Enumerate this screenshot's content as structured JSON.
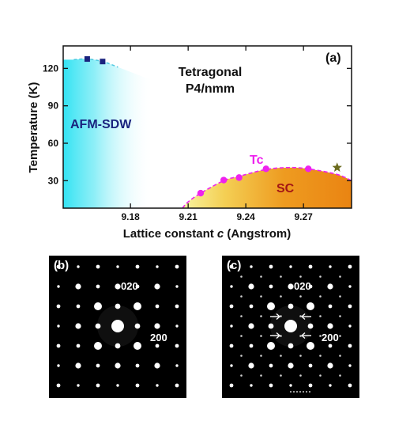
{
  "chart_data": {
    "type": "scatter",
    "panel_label": "(a)",
    "xlabel_prefix": "Lattice constant ",
    "xlabel_var": "c",
    "xlabel_suffix": " (Angstrom)",
    "ylabel": "Temperature (K)",
    "xlim": [
      9.145,
      9.295
    ],
    "ylim": [
      8,
      138
    ],
    "xticks": [
      9.18,
      9.21,
      9.24,
      9.27
    ],
    "xtick_labels": [
      "9.18",
      "9.21",
      "9.24",
      "9.27"
    ],
    "yticks": [
      30,
      60,
      90,
      120
    ],
    "ytick_labels": [
      "30",
      "60",
      "90",
      "120"
    ],
    "region_labels": {
      "afm": "AFM-SDW",
      "sc": "SC",
      "tc": "Tc",
      "tetragonal_line1": "Tetragonal",
      "tetragonal_line2": "P4/nmm"
    },
    "series": [
      {
        "marker": "square",
        "color": "#1a237e",
        "x": [
          9.1575,
          9.1655
        ],
        "y": [
          127.5,
          125.5
        ]
      },
      {
        "marker": "circle",
        "color": "#ee22ee",
        "x": [
          9.2165,
          9.2285,
          9.2365,
          9.2505,
          9.2725
        ],
        "y": [
          20,
          30.5,
          32.5,
          39.5,
          39.5
        ]
      },
      {
        "marker": "star",
        "color": "#6b6b1e",
        "x": [
          9.2875
        ],
        "y": [
          40.5
        ]
      }
    ],
    "tc_dome": {
      "x": [
        9.207,
        9.21,
        9.2165,
        9.2285,
        9.2365,
        9.2505,
        9.262,
        9.2725,
        9.2875,
        9.295
      ],
      "y": [
        8,
        13,
        20,
        30,
        33.5,
        39,
        40.5,
        39.5,
        35,
        30
      ]
    },
    "afm_boundary": {
      "x": [
        9.1505,
        9.1575,
        9.1655,
        9.1735
      ],
      "y": [
        127,
        127.5,
        125.5,
        121
      ]
    }
  },
  "diffraction": {
    "b": {
      "label": "(b)",
      "spot_labels": [
        {
          "text": "020"
        },
        {
          "text": "200"
        }
      ]
    },
    "c": {
      "label": "(c)",
      "spot_labels": [
        {
          "text": "020"
        },
        {
          "text": "200"
        }
      ]
    }
  },
  "colors": {
    "afm_fill": "#33e3f3",
    "sc_fill_dark": "#ec8a14",
    "sc_fill_light": "#f8f4a0",
    "tc_curve": "#ee22ee",
    "afm_text": "#1a237e",
    "sc_text": "#a31515",
    "tc_text": "#ee22ee",
    "panel_bg": "#000000"
  }
}
